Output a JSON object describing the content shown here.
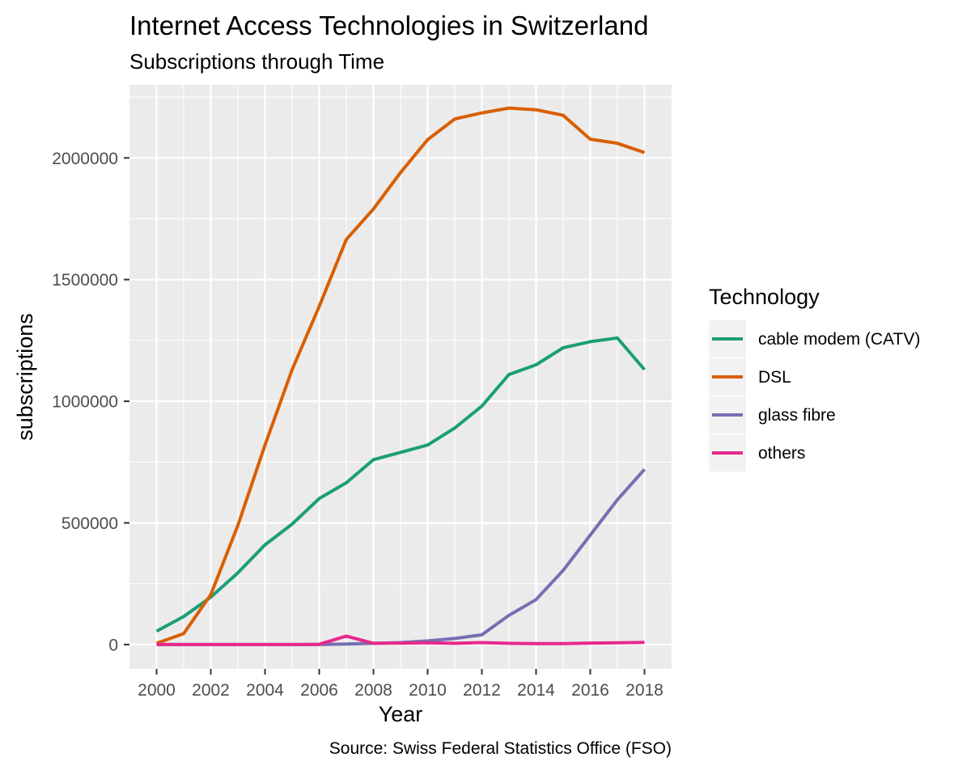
{
  "chart_data": {
    "type": "line",
    "title": "Internet Access Technologies in Switzerland",
    "subtitle": "Subscriptions through Time",
    "xlabel": "Year",
    "ylabel": "subscriptions",
    "caption": "Source: Swiss Federal Statistics Office (FSO)",
    "legend_title": "Technology",
    "legend_position": "right",
    "grid": true,
    "xlim": [
      1999,
      2019
    ],
    "ylim": [
      -100000,
      2300000
    ],
    "x_ticks": [
      2000,
      2002,
      2004,
      2006,
      2008,
      2010,
      2012,
      2014,
      2016,
      2018
    ],
    "y_ticks": [
      0,
      500000,
      1000000,
      1500000,
      2000000
    ],
    "x": [
      2000,
      2001,
      2002,
      2003,
      2004,
      2005,
      2006,
      2007,
      2008,
      2009,
      2010,
      2011,
      2012,
      2013,
      2014,
      2015,
      2016,
      2017,
      2018
    ],
    "series": [
      {
        "name": "cable modem (CATV)",
        "color": "#1b9e77",
        "values": [
          55000,
          115000,
          195000,
          295000,
          410000,
          495000,
          600000,
          665000,
          760000,
          790000,
          820000,
          890000,
          980000,
          1110000,
          1150000,
          1220000,
          1245000,
          1260000,
          1130000
        ]
      },
      {
        "name": "DSL",
        "color": "#d95f02",
        "values": [
          5000,
          45000,
          205000,
          490000,
          820000,
          1130000,
          1390000,
          1665000,
          1790000,
          1940000,
          2075000,
          2160000,
          2185000,
          2205000,
          2198000,
          2175000,
          2077000,
          2060000,
          2022000
        ]
      },
      {
        "name": "glass fibre",
        "color": "#7570b3",
        "values": [
          0,
          0,
          0,
          0,
          0,
          0,
          0,
          2000,
          5000,
          8000,
          15000,
          25000,
          40000,
          120000,
          185000,
          305000,
          450000,
          595000,
          720000
        ]
      },
      {
        "name": "others",
        "color": "#e7298a",
        "values": [
          0,
          0,
          0,
          0,
          0,
          0,
          1000,
          35000,
          5000,
          6000,
          7000,
          5000,
          8000,
          5000,
          4000,
          4000,
          6000,
          7000,
          9000
        ]
      }
    ]
  }
}
